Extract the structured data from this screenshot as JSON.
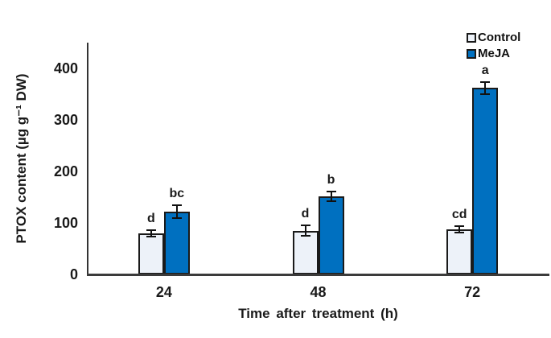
{
  "chart_data": {
    "type": "bar",
    "title": "",
    "xlabel": "Time after treatment (h)",
    "ylabel": "PTOX content (µg g⁻¹ DW)",
    "categories": [
      "24",
      "48",
      "72"
    ],
    "series": [
      {
        "name": "Control",
        "color": "#EDF2F9",
        "values": [
          80,
          85,
          88
        ],
        "errors": [
          8,
          12,
          8
        ],
        "sig_letters": [
          "d",
          "d",
          "cd"
        ]
      },
      {
        "name": "MeJA",
        "color": "#0070C0",
        "values": [
          122,
          152,
          362
        ],
        "errors": [
          14,
          11,
          13
        ],
        "sig_letters": [
          "bc",
          "b",
          "a"
        ]
      }
    ],
    "ylim": [
      0,
      450
    ],
    "yticks": [
      0,
      100,
      200,
      300,
      400
    ],
    "grid": false,
    "legend_position": "top-right",
    "bar_outline_color": "#1a1a1a",
    "axis_color": "#333333",
    "error_bar_color": "#111111"
  }
}
